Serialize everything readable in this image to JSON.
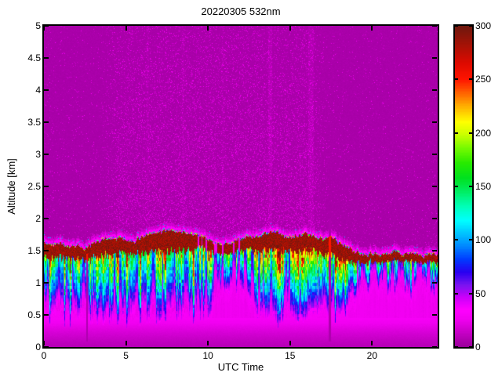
{
  "chart": {
    "title": "20220305 532nm",
    "xlabel": "UTC Time",
    "ylabel": "Altitude [km]"
  },
  "chart_data": {
    "type": "heatmap",
    "title": "20220305 532nm",
    "xlabel": "UTC Time",
    "ylabel": "Altitude [km]",
    "x_range_hours": [
      0,
      24
    ],
    "y_range_km": [
      0,
      5
    ],
    "value_range": [
      0,
      300
    ],
    "x_ticks": [
      0,
      5,
      10,
      15,
      20
    ],
    "y_ticks": [
      0,
      0.5,
      1,
      1.5,
      2,
      2.5,
      3,
      3.5,
      4,
      4.5,
      5
    ],
    "colorbar_ticks": [
      0,
      50,
      100,
      150,
      200,
      250,
      300
    ],
    "grid": false,
    "legend": "colorbar-right",
    "colormap": [
      {
        "v": 0,
        "c": "#9A009A"
      },
      {
        "v": 14,
        "c": "#C800C8"
      },
      {
        "v": 26,
        "c": "#F000F0"
      },
      {
        "v": 35,
        "c": "#FF00FF"
      },
      {
        "v": 47,
        "c": "#C800FA"
      },
      {
        "v": 58,
        "c": "#7814F0"
      },
      {
        "v": 70,
        "c": "#2800F0"
      },
      {
        "v": 82,
        "c": "#003CFF"
      },
      {
        "v": 95,
        "c": "#008CFF"
      },
      {
        "v": 107,
        "c": "#00C8FF"
      },
      {
        "v": 118,
        "c": "#00FFFF"
      },
      {
        "v": 132,
        "c": "#00FFB4"
      },
      {
        "v": 145,
        "c": "#00EE64"
      },
      {
        "v": 158,
        "c": "#00E11E"
      },
      {
        "v": 172,
        "c": "#28EB00"
      },
      {
        "v": 186,
        "c": "#78FA00"
      },
      {
        "v": 198,
        "c": "#C8FF00"
      },
      {
        "v": 210,
        "c": "#FFFF00"
      },
      {
        "v": 224,
        "c": "#FFB400"
      },
      {
        "v": 237,
        "c": "#FF6400"
      },
      {
        "v": 250,
        "c": "#FF1400"
      },
      {
        "v": 265,
        "c": "#DE0A00"
      },
      {
        "v": 282,
        "c": "#A51206"
      },
      {
        "v": 300,
        "c": "#6E180E"
      }
    ],
    "time_grid": {
      "t0": 0,
      "dt": 0.5
    },
    "aerosol_layer_top_km": [
      1.62,
      1.58,
      1.6,
      1.56,
      1.58,
      1.52,
      1.6,
      1.66,
      1.7,
      1.68,
      1.68,
      1.63,
      1.72,
      1.76,
      1.78,
      1.8,
      1.8,
      1.78,
      1.76,
      1.72,
      1.67,
      1.62,
      1.6,
      1.63,
      1.68,
      1.71,
      1.71,
      1.76,
      1.79,
      1.74,
      1.7,
      1.73,
      1.77,
      1.72,
      1.68,
      1.71,
      1.62,
      1.55,
      1.48,
      1.44,
      1.45,
      1.43,
      1.44,
      1.48,
      1.43,
      1.44,
      1.41,
      1.44,
      1.43
    ],
    "aerosol_band_thickness_km": [
      0.22,
      0.2,
      0.22,
      0.18,
      0.2,
      0.16,
      0.22,
      0.25,
      0.26,
      0.24,
      0.22,
      0.2,
      0.28,
      0.3,
      0.3,
      0.32,
      0.3,
      0.28,
      0.25,
      0.16,
      0.15,
      0.15,
      0.16,
      0.16,
      0.18,
      0.2,
      0.24,
      0.26,
      0.28,
      0.24,
      0.22,
      0.24,
      0.26,
      0.22,
      0.25,
      0.28,
      0.26,
      0.22,
      0.16,
      0.13,
      0.13,
      0.12,
      0.12,
      0.13,
      0.12,
      0.12,
      0.11,
      0.12,
      0.12
    ],
    "plume_bottom_km": [
      0.7,
      0.62,
      0.58,
      0.55,
      0.58,
      0.6,
      0.52,
      0.5,
      0.52,
      0.55,
      0.5,
      0.52,
      0.55,
      0.52,
      0.55,
      0.58,
      0.55,
      0.58,
      0.6,
      0.62,
      0.65,
      0.85,
      1.0,
      1.05,
      1.0,
      0.85,
      0.65,
      0.6,
      0.58,
      0.6,
      0.62,
      0.58,
      0.6,
      0.65,
      0.68,
      0.62,
      0.66,
      0.75,
      0.85,
      0.95,
      1.0,
      1.05,
      1.0,
      0.95,
      0.92,
      0.95,
      1.05,
      1.0,
      1.02
    ],
    "plume_intensity": [
      0.8,
      0.75,
      0.78,
      0.72,
      0.75,
      0.7,
      0.85,
      0.9,
      0.92,
      0.88,
      0.9,
      0.85,
      0.9,
      0.92,
      0.95,
      0.92,
      0.95,
      0.9,
      0.85,
      0.8,
      0.75,
      0.55,
      0.42,
      0.4,
      0.45,
      0.6,
      0.85,
      0.9,
      0.92,
      0.88,
      0.9,
      0.92,
      0.9,
      0.85,
      0.88,
      0.92,
      0.85,
      0.75,
      0.6,
      0.5,
      0.45,
      0.48,
      0.5,
      0.52,
      0.48,
      0.45,
      0.42,
      0.45,
      0.44
    ],
    "features": {
      "dropout_columns": [
        {
          "t": 2.62,
          "w": 0.05,
          "max_alt": 1.45
        },
        {
          "t": 17.42,
          "w": 0.07,
          "max_alt": 2.0
        }
      ],
      "bright_noise_columns": [
        {
          "t": 13.8,
          "w": 0.13,
          "a": 1
        },
        {
          "t": 16.28,
          "w": 0.16,
          "a": 1
        },
        {
          "t": 8.5,
          "w": 0.07,
          "a": 0.5
        },
        {
          "t": 10.9,
          "w": 0.07,
          "a": 0.4
        },
        {
          "t": 6.35,
          "w": 0.08,
          "a": 0.5
        }
      ],
      "band_gap_windows": [
        {
          "t0": 9.35,
          "t1": 11.95,
          "thresh": 0.42
        },
        {
          "t0": 12.35,
          "t1": 12.62,
          "thresh": 0.3
        },
        {
          "t0": 16.2,
          "t1": 16.42,
          "thresh": 0.3
        }
      ]
    },
    "render": {
      "background_value": 3.5,
      "speckle": {
        "density": 0.26
      },
      "rim": {
        "spark_prob": 0.45
      },
      "surface_band": {
        "top_km": 0.45,
        "peak_value": 30,
        "ground_value": 8
      },
      "magenta_zone_value": 24,
      "plume": {
        "base_min": 45,
        "base_span": 235,
        "gamma": 1.15
      }
    }
  }
}
